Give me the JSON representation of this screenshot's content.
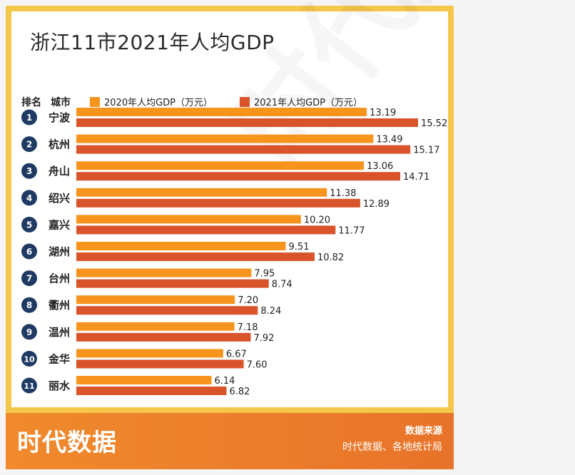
{
  "title": "浙江11市2021年人均GDP",
  "header": {
    "rank": "排名",
    "city": "城市"
  },
  "brand": "时代数据",
  "watermark": "时代数据",
  "source": {
    "label": "数据来源",
    "text": "时代数据、各地统计局"
  },
  "colors": {
    "series2020": "#f7941d",
    "series2021": "#d9532b",
    "badge": "#1f3a63"
  },
  "chart_data": {
    "type": "bar",
    "orientation": "horizontal",
    "categories": [
      "宁波",
      "杭州",
      "舟山",
      "绍兴",
      "嘉兴",
      "湖州",
      "台州",
      "衢州",
      "温州",
      "金华",
      "丽水"
    ],
    "ranks": [
      "1",
      "2",
      "3",
      "4",
      "5",
      "6",
      "7",
      "8",
      "9",
      "10",
      "11"
    ],
    "series": [
      {
        "name": "2020年人均GDP（万元）",
        "color": "#f7941d",
        "values": [
          13.19,
          13.49,
          13.06,
          11.38,
          10.2,
          9.51,
          7.95,
          7.2,
          7.18,
          6.67,
          6.14
        ],
        "labels": [
          "13.19",
          "13.49",
          "13.06",
          "11.38",
          "10.20",
          "9.51",
          "7.95",
          "7.20",
          "7.18",
          "6.67",
          "6.14"
        ]
      },
      {
        "name": "2021年人均GDP（万元）",
        "color": "#d9532b",
        "values": [
          15.52,
          15.17,
          14.71,
          12.89,
          11.77,
          10.82,
          8.74,
          8.24,
          7.92,
          7.6,
          6.82
        ],
        "labels": [
          "15.52",
          "15.17",
          "14.71",
          "12.89",
          "11.77",
          "10.82",
          "8.74",
          "8.24",
          "7.92",
          "7.60",
          "6.82"
        ]
      }
    ],
    "xlim": [
      0,
      16.2
    ],
    "legend_position": "top"
  }
}
